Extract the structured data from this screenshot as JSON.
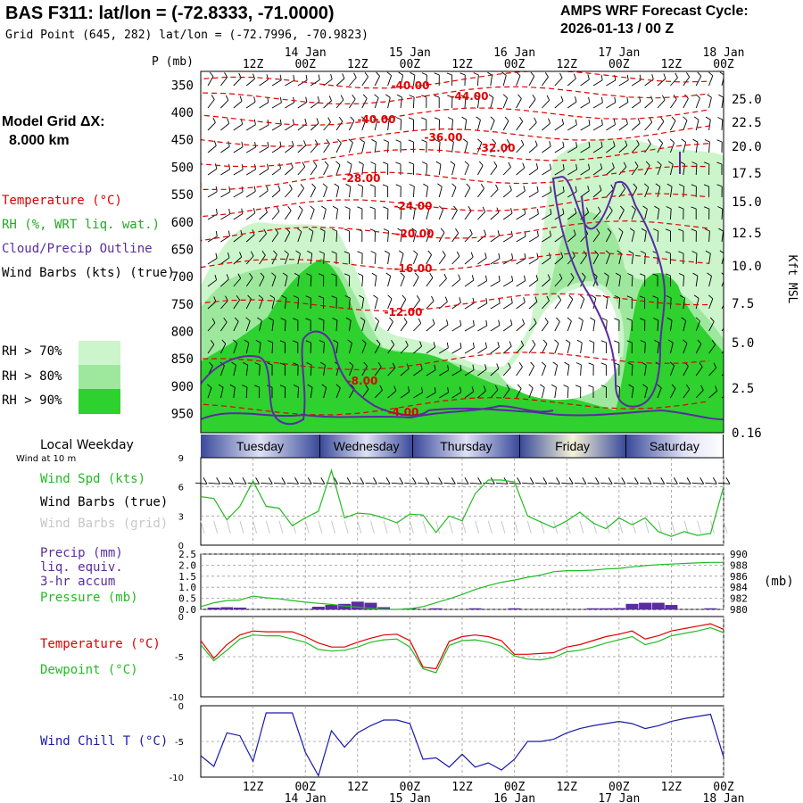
{
  "header": {
    "title": "BAS F311:  lat/lon = (-72.8333, -71.0000)",
    "subtitle": "Grid Point (645, 282) lat/lon = (-72.7996, -70.9823)",
    "cycle_line1": "AMPS WRF Forecast Cycle:",
    "cycle_line2": "2026-01-13 / 00  Z"
  },
  "model_grid": {
    "label": "Model Grid ΔX:",
    "value": "8.000 km"
  },
  "legend": {
    "temperature": "Temperature (°C)",
    "rh": "RH (%, WRT liq. wat.)",
    "cloud": "Cloud/Precip Outline",
    "wind": "Wind Barbs (kts) (true)",
    "rh70": "RH > 70%",
    "rh80": "RH > 80%",
    "rh90": "RH > 90%",
    "colors": {
      "rh70": "#ccf5cc",
      "rh80": "#9ee89e",
      "rh90": "#2ed12e",
      "temp": "#e00000",
      "cloud": "#5a2ca0"
    }
  },
  "time_axis": {
    "top_labels": [
      "12Z",
      "00Z",
      "12Z",
      "00Z",
      "12Z",
      "00Z",
      "12Z",
      "00Z",
      "12Z",
      "00Z"
    ],
    "top_dates": [
      "14 Jan",
      "15 Jan",
      "16 Jan",
      "17 Jan",
      "18 Jan"
    ],
    "bottom_labels": [
      "12Z",
      "00Z",
      "12Z",
      "00Z",
      "12Z",
      "00Z",
      "12Z",
      "00Z",
      "12Z",
      "00Z"
    ],
    "bottom_dates": [
      "14 Jan",
      "15 Jan",
      "16 Jan",
      "17 Jan",
      "18 Jan"
    ]
  },
  "axes": {
    "p_label": "P (mb)",
    "kft_label": "Kft MSL",
    "pressure_units": "(mb)"
  },
  "weekday": {
    "label": "Local Weekday",
    "sublabel": "Wind at 10 m",
    "days": [
      "Tuesday",
      "Wednesday",
      "Thursday",
      "Friday",
      "Saturday"
    ]
  },
  "panel_labels": {
    "wspd": "Wind Spd (kts)",
    "wbarbs": "Wind Barbs (true)",
    "wbarbs_grid": "Wind Barbs (grid)",
    "precip1": "Precip (mm)",
    "precip2": "liq. equiv.",
    "precip3": "3-hr accum",
    "pressure": "Pressure (mb)",
    "temp": "Temperature (°C)",
    "dewp": "Dewpoint (°C)",
    "wchill": "Wind Chill T (°C)"
  },
  "chart_data": [
    {
      "type": "heatmap",
      "name_hint": "time-height cross section",
      "y_ticks_left": [
        "350",
        "400",
        "450",
        "500",
        "550",
        "600",
        "650",
        "700",
        "750",
        "800",
        "850",
        "900",
        "950"
      ],
      "y_ticks_right": [
        "25.0",
        "22.5",
        "20.0",
        "17.5",
        "15.0",
        "12.5",
        "10.0",
        "7.5",
        "5.0",
        "2.5",
        "0.16"
      ],
      "temperature_contour_labels": [
        "-40.00",
        "-44.00",
        "-40.00",
        "-36.00",
        "-32.00",
        "-28.00",
        "-24.00",
        "-20.00",
        "-16.00",
        "-12.00",
        "-8.00",
        "-4.00"
      ]
    },
    {
      "type": "line",
      "name_hint": "10 m wind speed",
      "ylim": [
        0,
        9
      ],
      "y_ticks": [
        "9",
        "6",
        "3",
        "0"
      ],
      "series": [
        {
          "name": "Wind Spd (kts)",
          "color": "#22bb22",
          "x": [
            0,
            3,
            6,
            9,
            12,
            15,
            18,
            21,
            24,
            27,
            30,
            33,
            36,
            39,
            42,
            45,
            48,
            51,
            54,
            57,
            60,
            63,
            66,
            69,
            72,
            75,
            78,
            81,
            84,
            87,
            90,
            93,
            96,
            99,
            102,
            105,
            108,
            111,
            114,
            117,
            120
          ],
          "values": [
            5.0,
            4.8,
            2.6,
            4.0,
            6.6,
            4.0,
            3.8,
            2.0,
            2.8,
            3.5,
            7.7,
            2.8,
            3.3,
            3.2,
            2.8,
            2.3,
            3.2,
            3.1,
            1.3,
            3.0,
            2.5,
            5.3,
            6.7,
            6.7,
            6.5,
            3.0,
            2.4,
            1.8,
            2.5,
            3.4,
            2.3,
            1.7,
            2.8,
            2.1,
            2.8,
            1.4,
            0.9,
            1.4,
            1.0,
            1.2,
            6.0
          ]
        }
      ]
    },
    {
      "type": "line",
      "name_hint": "precip and pressure",
      "y_ticks_left": [
        "2.5",
        "2.0",
        "1.5",
        "1.0",
        "0.5",
        "0.0"
      ],
      "y_ticks_right": [
        "990",
        "988",
        "986",
        "984",
        "982",
        "980"
      ],
      "ylim_left": [
        0,
        2.5
      ],
      "ylim_right": [
        980,
        990
      ],
      "series": [
        {
          "name": "Pressure (mb)",
          "color": "#22bb22",
          "x": [
            0,
            3,
            6,
            9,
            12,
            15,
            18,
            21,
            24,
            27,
            30,
            33,
            36,
            39,
            42,
            45,
            48,
            51,
            54,
            57,
            60,
            63,
            66,
            69,
            72,
            75,
            78,
            81,
            84,
            87,
            90,
            93,
            96,
            99,
            102,
            105,
            108,
            111,
            114,
            117,
            120
          ],
          "values": [
            980.5,
            981.2,
            981.6,
            981.7,
            982.4,
            982.1,
            981.9,
            981.6,
            981.3,
            981.1,
            980.9,
            980.6,
            980.4,
            980.2,
            980.0,
            980.0,
            980.1,
            980.5,
            981.2,
            981.9,
            982.7,
            983.6,
            984.3,
            984.9,
            985.3,
            985.8,
            986.2,
            986.8,
            987.0,
            987.0,
            987.1,
            987.3,
            987.4,
            987.7,
            987.9,
            988.1,
            988.2,
            988.3,
            988.4,
            988.5,
            988.5
          ]
        },
        {
          "name": "Precip (mm)",
          "color": "#5a2ca0",
          "x": [
            3,
            6,
            9,
            27,
            30,
            33,
            36,
            39,
            42,
            48,
            54,
            63,
            72,
            90,
            93,
            96,
            99,
            102,
            105,
            108,
            117
          ],
          "values": [
            0.08,
            0.1,
            0.08,
            0.12,
            0.2,
            0.25,
            0.35,
            0.3,
            0.1,
            0.05,
            0.05,
            0.05,
            0.05,
            0.05,
            0.05,
            0.06,
            0.25,
            0.3,
            0.3,
            0.2,
            0.05
          ]
        }
      ]
    },
    {
      "type": "line",
      "name_hint": "temperature and dewpoint",
      "ylim": [
        -10,
        0
      ],
      "y_ticks": [
        "0",
        "-5",
        "-10"
      ],
      "series": [
        {
          "name": "Temperature (°C)",
          "color": "#e00000",
          "x": [
            0,
            3,
            6,
            9,
            12,
            15,
            18,
            21,
            24,
            27,
            30,
            33,
            36,
            39,
            42,
            45,
            48,
            51,
            54,
            57,
            60,
            63,
            66,
            69,
            72,
            75,
            78,
            81,
            84,
            87,
            90,
            93,
            96,
            99,
            102,
            105,
            108,
            111,
            114,
            117,
            120
          ],
          "values": [
            -3.0,
            -5.2,
            -3.5,
            -2.3,
            -1.8,
            -1.9,
            -1.9,
            -1.9,
            -2.5,
            -3.3,
            -3.8,
            -3.8,
            -3.2,
            -2.7,
            -2.3,
            -2.2,
            -3.0,
            -6.3,
            -6.5,
            -3.1,
            -2.5,
            -2.3,
            -2.5,
            -3.0,
            -4.7,
            -4.7,
            -4.6,
            -4.5,
            -3.8,
            -3.5,
            -3.0,
            -2.5,
            -2.2,
            -1.8,
            -2.8,
            -2.4,
            -1.8,
            -1.5,
            -1.2,
            -0.9,
            -1.6
          ]
        },
        {
          "name": "Dewpoint (°C)",
          "color": "#22bb22",
          "x": [
            0,
            3,
            6,
            9,
            12,
            15,
            18,
            21,
            24,
            27,
            30,
            33,
            36,
            39,
            42,
            45,
            48,
            51,
            54,
            57,
            60,
            63,
            66,
            69,
            72,
            75,
            78,
            81,
            84,
            87,
            90,
            93,
            96,
            99,
            102,
            105,
            108,
            111,
            114,
            117,
            120
          ],
          "values": [
            -3.5,
            -5.5,
            -4.2,
            -2.8,
            -2.3,
            -2.4,
            -2.4,
            -2.8,
            -3.2,
            -4.1,
            -4.3,
            -4.2,
            -3.8,
            -3.2,
            -2.9,
            -2.8,
            -3.8,
            -6.5,
            -7.0,
            -3.6,
            -3.0,
            -2.9,
            -3.2,
            -3.7,
            -4.9,
            -5.3,
            -5.4,
            -5.1,
            -4.4,
            -4.2,
            -3.8,
            -3.3,
            -2.9,
            -2.5,
            -3.5,
            -3.1,
            -2.4,
            -2.1,
            -1.8,
            -1.4,
            -2.0
          ]
        }
      ]
    },
    {
      "type": "line",
      "name_hint": "wind chill",
      "ylim": [
        -10,
        0
      ],
      "y_ticks": [
        "0",
        "-5",
        "-10"
      ],
      "series": [
        {
          "name": "Wind Chill T (°C)",
          "color": "#1a1aaa",
          "x": [
            0,
            3,
            6,
            9,
            12,
            15,
            18,
            21,
            24,
            27,
            30,
            33,
            36,
            39,
            42,
            45,
            48,
            51,
            54,
            57,
            60,
            63,
            66,
            69,
            72,
            75,
            78,
            81,
            84,
            87,
            90,
            93,
            96,
            99,
            102,
            105,
            108,
            111,
            114,
            117,
            120
          ],
          "values": [
            -7.0,
            -8.5,
            -3.8,
            -4.2,
            -7.8,
            -1.0,
            -1.0,
            -1.0,
            -6.5,
            -9.8,
            -3.5,
            -5.8,
            -3.8,
            -2.8,
            -2.0,
            -2.0,
            -2.5,
            -7.5,
            -7.3,
            -8.6,
            -6.8,
            -8.6,
            -8.0,
            -9.0,
            -7.5,
            -5.0,
            -5.0,
            -4.7,
            -3.8,
            -3.2,
            -2.8,
            -2.5,
            -2.2,
            -2.5,
            -3.2,
            -2.8,
            -2.2,
            -1.8,
            -1.5,
            -1.2,
            -7.2
          ]
        }
      ]
    }
  ]
}
